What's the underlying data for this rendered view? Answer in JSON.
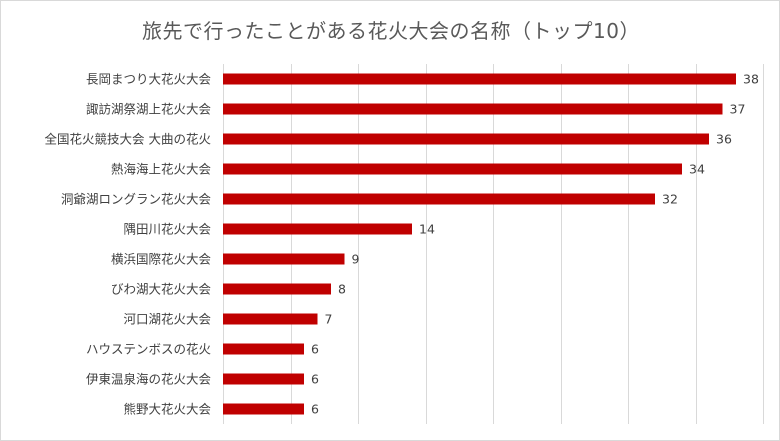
{
  "chart_data": {
    "type": "bar",
    "orientation": "horizontal",
    "title": "旅先で行ったことがある花火大会の名称（トップ10）",
    "categories": [
      "長岡まつり大花火大会",
      "諏訪湖祭湖上花火大会",
      "全国花火競技大会 大曲の花火",
      "熱海海上花火大会",
      "洞爺湖ロングラン花火大会",
      "隅田川花火大会",
      "横浜国際花火大会",
      "びわ湖大花火大会",
      "河口湖花火大会",
      "ハウステンボスの花火",
      "伊東温泉海の花火大会",
      "熊野大花火大会"
    ],
    "values": [
      38,
      37,
      36,
      34,
      32,
      14,
      9,
      8,
      7,
      6,
      6,
      6
    ],
    "xlim": [
      0,
      40
    ],
    "grid": true,
    "data_labels": true,
    "bar_color": "#c00000",
    "grid_color": "#d9d9d9",
    "label_color": "#404040"
  }
}
